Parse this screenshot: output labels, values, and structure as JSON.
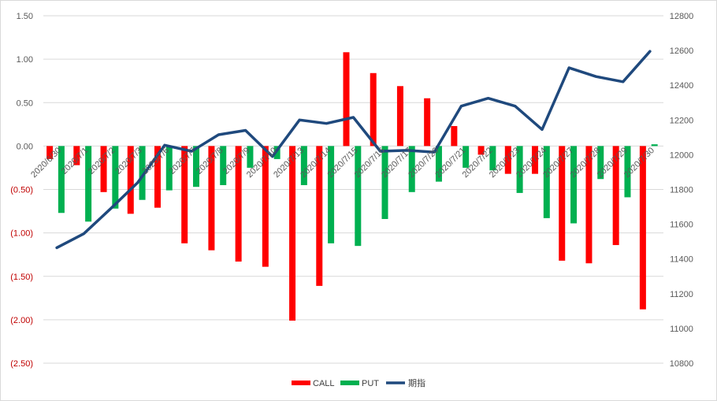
{
  "chart_data": {
    "type": "bar",
    "categories": [
      "2020/6/30",
      "2020/7/1",
      "2020/7/2",
      "2020/7/3",
      "2020/7/6",
      "2020/7/7",
      "2020/7/8",
      "2020/7/9",
      "2020/7/10",
      "2020/7/13",
      "2020/7/14",
      "2020/7/15",
      "2020/7/16",
      "2020/7/17",
      "2020/7/20",
      "2020/7/21",
      "2020/7/22",
      "2020/7/23",
      "2020/7/24",
      "2020/7/27",
      "2020/7/28",
      "2020/7/29",
      "2020/7/30"
    ],
    "series": [
      {
        "name": "CALL",
        "axis": "left",
        "kind": "bar",
        "color": "#ff0000",
        "values": [
          -0.15,
          -0.22,
          -0.53,
          -0.78,
          -0.71,
          -1.12,
          -1.2,
          -1.33,
          -1.39,
          -2.01,
          -1.61,
          1.08,
          0.84,
          0.69,
          0.55,
          0.23,
          -0.1,
          -0.32,
          -0.32,
          -1.32,
          -1.35,
          -1.14,
          -1.88
        ]
      },
      {
        "name": "PUT",
        "axis": "left",
        "kind": "bar",
        "color": "#00b050",
        "values": [
          -0.77,
          -0.87,
          -0.72,
          -0.62,
          -0.51,
          -0.47,
          -0.45,
          -0.25,
          -0.15,
          -0.45,
          -1.12,
          -1.15,
          -0.84,
          -0.53,
          -0.41,
          -0.25,
          -0.28,
          -0.54,
          -0.83,
          -0.89,
          -0.38,
          -0.59,
          0.02
        ]
      },
      {
        "name": "期指",
        "axis": "right",
        "kind": "line",
        "color": "#1f497d",
        "values": [
          11465,
          11545,
          11690,
          11840,
          12055,
          12020,
          12115,
          12140,
          11990,
          12200,
          12180,
          12215,
          12020,
          12025,
          12015,
          12280,
          12325,
          12280,
          12145,
          12500,
          12450,
          12420,
          12595
        ]
      }
    ],
    "left_axis": {
      "ylim": [
        -2.5,
        1.5
      ],
      "ticks": [
        "1.50",
        "1.00",
        "0.50",
        "0.00",
        "(0.50)",
        "(1.00)",
        "(1.50)",
        "(2.00)",
        "(2.50)"
      ],
      "tick_values": [
        1.5,
        1.0,
        0.5,
        0.0,
        -0.5,
        -1.0,
        -1.5,
        -2.0,
        -2.5
      ],
      "negative_color": "#c00000",
      "positive_color": "#595959"
    },
    "right_axis": {
      "ylim": [
        10800,
        12800
      ],
      "ticks": [
        "12800",
        "12600",
        "12400",
        "12200",
        "12000",
        "11800",
        "11600",
        "11400",
        "11200",
        "11000",
        "10800"
      ],
      "tick_values": [
        12800,
        12600,
        12400,
        12200,
        12000,
        11800,
        11600,
        11400,
        11200,
        11000,
        10800
      ]
    },
    "grid": true,
    "legend_position": "bottom",
    "gridline_color": "#d9d9d9"
  }
}
